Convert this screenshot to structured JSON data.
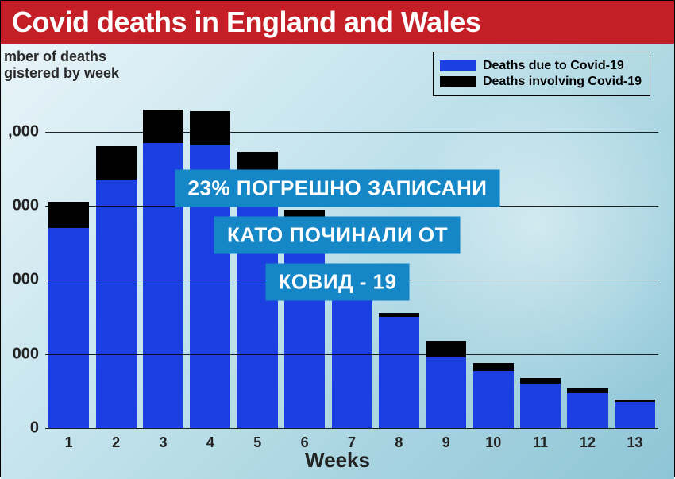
{
  "header": {
    "title": "Covid deaths in England and Wales"
  },
  "chart": {
    "type": "stacked-bar",
    "ylabel_line1": "mber of deaths",
    "ylabel_line2": "gistered by week",
    "xlabel": "Weeks",
    "ylim": [
      0,
      9000
    ],
    "ytick_step": 2000,
    "yticks": [
      {
        "value": 0,
        "label": "0"
      },
      {
        "value": 2000,
        "label": "000"
      },
      {
        "value": 4000,
        "label": "000"
      },
      {
        "value": 6000,
        "label": "000"
      },
      {
        "value": 8000,
        "label": ",000"
      }
    ],
    "background_gradient": [
      "#e8f4f8",
      "#8ec5d6"
    ],
    "grid_color": "#000000",
    "categories": [
      "1",
      "2",
      "3",
      "4",
      "5",
      "6",
      "7",
      "8",
      "9",
      "10",
      "11",
      "12",
      "13"
    ],
    "series": [
      {
        "name": "Deaths due to Covid-19",
        "color": "#1b3fe0"
      },
      {
        "name": "Deaths involving Covid-19",
        "color": "#000000"
      }
    ],
    "due_to": [
      5400,
      6700,
      7700,
      7650,
      6600,
      5650,
      4100,
      3000,
      1900,
      1550,
      1200,
      950,
      700
    ],
    "involving": [
      700,
      900,
      900,
      900,
      850,
      250,
      100,
      100,
      450,
      200,
      150,
      150,
      80
    ],
    "bar_width": 0.86,
    "legend": {
      "item1": "Deaths due to Covid-19",
      "item2": "Deaths involving Covid-19"
    }
  },
  "overlay": {
    "line1": "23% ПОГРЕШНО ЗАПИСАНИ",
    "line2": "КАТО ПОЧИНАЛИ ОТ",
    "line3": "КОВИД - 19",
    "bg_color": "#1586c6",
    "text_color": "#ffffff"
  }
}
